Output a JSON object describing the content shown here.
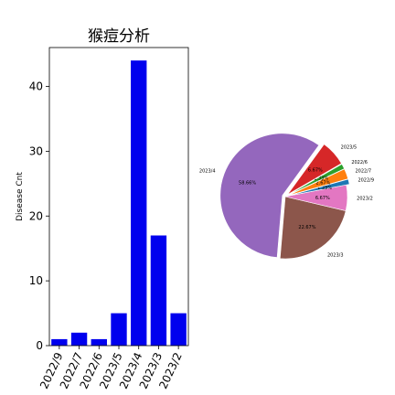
{
  "chart_data": [
    {
      "type": "bar",
      "title": "猴痘分析",
      "xlabel": "",
      "ylabel": "Disease Cnt",
      "categories": [
        "2022/9",
        "2022/7",
        "2022/6",
        "2023/5",
        "2023/4",
        "2023/3",
        "2023/2"
      ],
      "values": [
        1,
        2,
        1,
        5,
        44,
        17,
        5
      ],
      "ylim": [
        0,
        46
      ],
      "yticks": [
        0,
        10,
        20,
        30,
        40
      ],
      "color": "#0000ee",
      "grid": false
    },
    {
      "type": "pie",
      "slices": [
        {
          "label": "2023/4",
          "pct_label": "58.66%",
          "value": 58.66,
          "color": "#9467bd",
          "explode": 0.05
        },
        {
          "label": "2023/3",
          "pct_label": "22.67%",
          "value": 22.67,
          "color": "#8c564b",
          "explode": 0
        },
        {
          "label": "2023/2",
          "pct_label": "6.67%",
          "value": 6.67,
          "color": "#e377c2",
          "explode": 0
        },
        {
          "label": "2022/9",
          "pct_label": "1.33%",
          "value": 1.33,
          "color": "#1f77b4",
          "explode": 0.05
        },
        {
          "label": "2022/7",
          "pct_label": "2.67%",
          "value": 2.67,
          "color": "#ff7f0e",
          "explode": 0.05
        },
        {
          "label": "2022/6",
          "pct_label": "1.33%",
          "value": 1.33,
          "color": "#2ca02c",
          "explode": 0.05
        },
        {
          "label": "2023/5",
          "pct_label": "6.67%",
          "value": 6.67,
          "color": "#d62728",
          "explode": 0.05
        }
      ]
    }
  ]
}
